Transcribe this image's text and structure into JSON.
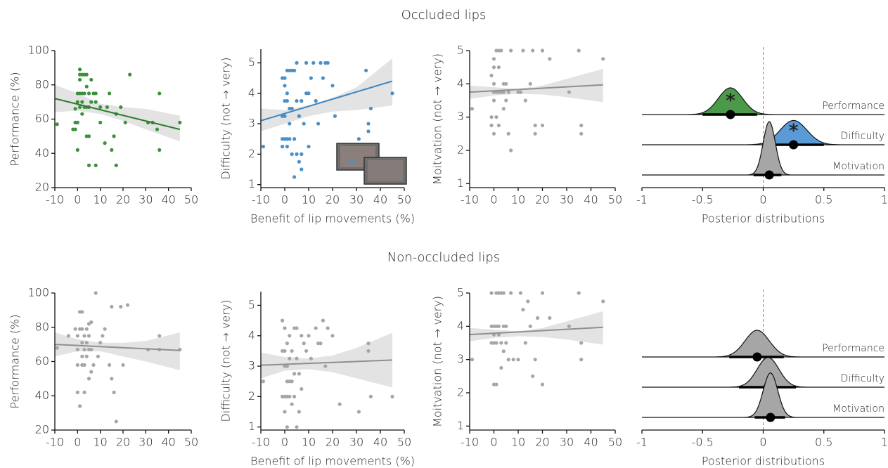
{
  "chart_data": [
    {
      "type": "scatter",
      "title": "Occluded lips",
      "ylabel": "Performance (%)",
      "color": "#3f8f3f",
      "fit_color": "#2e7d2e",
      "x": [
        -9,
        -2,
        -1,
        -1,
        -1,
        0,
        0,
        0,
        0,
        1,
        1,
        1,
        1,
        1,
        2,
        2,
        2,
        2,
        3,
        3,
        3,
        4,
        4,
        4,
        4,
        5,
        5,
        5,
        5,
        6,
        6,
        7,
        8,
        8,
        8,
        10,
        10,
        12,
        13,
        14,
        15,
        16,
        17,
        17,
        19,
        21,
        23,
        31,
        33,
        35,
        36,
        36,
        45
      ],
      "y": [
        57,
        54,
        54,
        58,
        66,
        42,
        58,
        70,
        75,
        67,
        75,
        83,
        86,
        89,
        63,
        70,
        75,
        86,
        67,
        75,
        86,
        50,
        67,
        79,
        86,
        33,
        50,
        67,
        75,
        70,
        83,
        75,
        33,
        70,
        75,
        58,
        67,
        46,
        67,
        75,
        42,
        50,
        33,
        63,
        67,
        58,
        86,
        58,
        58,
        54,
        42,
        75,
        58
      ],
      "fit": {
        "x": [
          -10,
          45
        ],
        "y": [
          72,
          54
        ]
      },
      "band": {
        "x": [
          -10,
          0,
          10,
          20,
          30,
          45
        ],
        "lower": [
          64,
          65,
          63,
          59,
          54,
          47
        ],
        "upper": [
          80,
          75,
          69,
          67,
          66,
          62
        ]
      },
      "xlim": [
        -10,
        50
      ],
      "xticks": [
        -10,
        0,
        10,
        20,
        30,
        40,
        50
      ],
      "ylim": [
        20,
        100
      ],
      "yticks": [
        20,
        40,
        60,
        80,
        100
      ]
    },
    {
      "type": "scatter",
      "ylabel": "Difficulty (not → very)",
      "xlabel": "Benefit of lip movements (%)",
      "color": "#4a90c8",
      "fit_color": "#3a85c4",
      "x": [
        -9,
        -1,
        -1,
        -1,
        -1,
        0,
        0,
        0,
        0,
        0,
        1,
        1,
        1,
        1,
        1,
        2,
        2,
        2,
        2,
        3,
        3,
        3,
        4,
        4,
        4,
        5,
        5,
        5,
        6,
        6,
        7,
        7,
        7,
        8,
        9,
        9,
        10,
        10,
        11,
        12,
        13,
        14,
        15,
        16,
        17,
        18,
        20,
        21,
        28,
        31,
        34,
        35,
        35,
        36,
        45
      ],
      "y": [
        2.25,
        2.25,
        2.5,
        3.25,
        4.5,
        2.5,
        3.25,
        3.75,
        4.25,
        4.5,
        2.25,
        2.5,
        3.75,
        4,
        4.75,
        2.5,
        3,
        3.5,
        4.75,
        2,
        3.5,
        4.75,
        1.25,
        2.5,
        4.75,
        2,
        3.75,
        5,
        1.75,
        3.25,
        1.5,
        2,
        3.75,
        3,
        4,
        5,
        2.25,
        4,
        4.5,
        5,
        3.75,
        3,
        5,
        4.5,
        5,
        5,
        4.25,
        3.25,
        1.75,
        2.5,
        4.75,
        2.75,
        3,
        3.5,
        4
      ],
      "fit": {
        "x": [
          -10,
          45
        ],
        "y": [
          3.1,
          4.4
        ]
      },
      "band": {
        "x": [
          -10,
          0,
          10,
          20,
          30,
          45
        ],
        "lower": [
          2.75,
          3,
          3.25,
          3.4,
          3.45,
          3.6
        ],
        "upper": [
          3.5,
          3.45,
          3.6,
          3.85,
          4.2,
          5.15
        ]
      },
      "xlim": [
        -10,
        50
      ],
      "xticks": [
        -10,
        0,
        10,
        20,
        30,
        40,
        50
      ],
      "ylim": [
        0.9,
        5.45
      ],
      "yticks": [
        1,
        2,
        3,
        4,
        5
      ]
    },
    {
      "type": "scatter",
      "ylabel": "Moitvation (not → very)",
      "color": "#a6a6a6",
      "fit_color": "#8f8f8f",
      "x": [
        -9,
        -1,
        -1,
        -1,
        0,
        0,
        0,
        0,
        0,
        0,
        1,
        1,
        1,
        2,
        2,
        2,
        2,
        3,
        3,
        4,
        4,
        4,
        5,
        5,
        6,
        6,
        7,
        7,
        10,
        11,
        12,
        13,
        15,
        16,
        17,
        17,
        20,
        20,
        23,
        31,
        35,
        36,
        36,
        45
      ],
      "y": [
        3.25,
        2.75,
        3,
        4.25,
        2.5,
        3.5,
        3.75,
        4,
        4.5,
        4.75,
        3,
        3.75,
        5,
        2.75,
        3.75,
        4.5,
        5,
        3.75,
        5,
        3.25,
        3.75,
        4,
        3.5,
        4,
        2.5,
        3.75,
        2,
        5,
        3.75,
        3.75,
        5,
        3.5,
        4,
        5,
        2.5,
        2.75,
        2.75,
        5,
        4.75,
        3.75,
        5,
        2.5,
        2.75,
        4.75
      ],
      "fit": {
        "x": [
          -10,
          45
        ],
        "y": [
          3.75,
          3.97
        ]
      },
      "band": {
        "x": [
          -10,
          0,
          10,
          20,
          30,
          45
        ],
        "lower": [
          3.55,
          3.65,
          3.7,
          3.68,
          3.6,
          3.45
        ],
        "upper": [
          3.95,
          3.9,
          3.85,
          3.95,
          4.15,
          4.45
        ]
      },
      "xlim": [
        -10,
        50
      ],
      "xticks": [
        -10,
        0,
        10,
        20,
        30,
        40,
        50
      ],
      "ylim": [
        0.88,
        5
      ],
      "yticks": [
        1,
        2,
        3,
        4,
        5
      ]
    },
    {
      "type": "ridge",
      "xlabel": "Posterior distributions",
      "xlim": [
        -1,
        1
      ],
      "xticks": [
        -1,
        -0.5,
        0,
        0.5,
        1
      ],
      "refline": 0,
      "series": [
        {
          "name": "Performance",
          "color": "#4a9a4a",
          "mean": -0.27,
          "sd": 0.1,
          "ci": [
            -0.5,
            -0.05
          ],
          "annotation": "*"
        },
        {
          "name": "Difficulty",
          "color": "#5b9bd5",
          "mean": 0.25,
          "sd": 0.11,
          "ci": [
            0,
            0.5
          ],
          "annotation": "*"
        },
        {
          "name": "Motivation",
          "color": "#a6a6a6",
          "mean": 0.05,
          "sd": 0.05,
          "ci": [
            -0.08,
            0.15
          ]
        }
      ]
    },
    {
      "type": "scatter",
      "title": "Non-occluded lips",
      "ylabel": "Performance (%)",
      "color": "#a6a6a6",
      "fit_color": "#8f8f8f",
      "x": [
        -9,
        -4,
        -1,
        0,
        0,
        0,
        0,
        1,
        1,
        1,
        2,
        2,
        2,
        2,
        2,
        3,
        3,
        3,
        3,
        4,
        4,
        4,
        5,
        5,
        5,
        5,
        6,
        6,
        6,
        7,
        8,
        9,
        10,
        11,
        12,
        14,
        15,
        15,
        16,
        17,
        19,
        20,
        22,
        31,
        36,
        36,
        45
      ],
      "y": [
        68,
        75,
        79,
        42,
        58,
        67,
        75,
        34,
        79,
        89,
        58,
        63,
        71,
        79,
        89,
        42,
        58,
        67,
        75,
        63,
        71,
        79,
        50,
        67,
        75,
        82,
        54,
        67,
        83,
        58,
        100,
        63,
        71,
        75,
        79,
        58,
        50,
        92,
        42,
        25,
        92,
        58,
        93,
        67,
        67,
        75,
        67
      ],
      "fit": {
        "x": [
          -10,
          45
        ],
        "y": [
          70,
          66.5
        ]
      },
      "band": {
        "x": [
          -10,
          0,
          10,
          20,
          30,
          45
        ],
        "lower": [
          63,
          66,
          66,
          63,
          60,
          55
        ],
        "upper": [
          77,
          73,
          71,
          71,
          72,
          77
        ]
      },
      "xlim": [
        -10,
        50
      ],
      "xticks": [
        -10,
        0,
        10,
        20,
        30,
        40,
        50
      ],
      "ylim": [
        20,
        100
      ],
      "yticks": [
        20,
        40,
        60,
        80,
        100
      ]
    },
    {
      "type": "scatter",
      "ylabel": "Difficulty (not → very)",
      "xlabel": "Benefit of lip movements (%)",
      "color": "#a6a6a6",
      "fit_color": "#8f8f8f",
      "x": [
        -9,
        -1,
        -1,
        -1,
        0,
        0,
        0,
        0,
        0,
        1,
        1,
        1,
        1,
        1,
        2,
        2,
        2,
        2,
        3,
        3,
        3,
        4,
        4,
        4,
        5,
        5,
        5,
        6,
        6,
        7,
        7,
        8,
        9,
        10,
        11,
        13,
        14,
        15,
        16,
        17,
        18,
        20,
        23,
        31,
        35,
        35,
        36,
        45
      ],
      "y": [
        2.5,
        2,
        3.5,
        4.5,
        1.5,
        2,
        3,
        3.5,
        4.25,
        1,
        2,
        2.5,
        3,
        3.75,
        2,
        2.5,
        3.25,
        4,
        1.75,
        2.5,
        3.5,
        2,
        2.75,
        4.25,
        1,
        3.25,
        4.25,
        1.5,
        2.75,
        2.25,
        4,
        3.75,
        3.5,
        4,
        3.25,
        4.25,
        3.75,
        3.75,
        4.5,
        3,
        4.25,
        4,
        1.75,
        1.5,
        3.75,
        3.5,
        2,
        2
      ],
      "fit": {
        "x": [
          -10,
          45
        ],
        "y": [
          3.03,
          3.2
        ]
      },
      "band": {
        "x": [
          -10,
          0,
          10,
          20,
          30,
          45
        ],
        "lower": [
          2.6,
          2.85,
          2.9,
          2.8,
          2.6,
          2.3
        ],
        "upper": [
          3.45,
          3.3,
          3.25,
          3.35,
          3.6,
          4.1
        ]
      },
      "xlim": [
        -10,
        50
      ],
      "xticks": [
        -10,
        0,
        10,
        20,
        30,
        40,
        50
      ],
      "ylim": [
        0.9,
        5.45
      ],
      "yticks": [
        1,
        2,
        3,
        4,
        5
      ]
    },
    {
      "type": "scatter",
      "ylabel": "Moitvation (not → very)",
      "color": "#a6a6a6",
      "fit_color": "#8f8f8f",
      "x": [
        -9,
        -1,
        -1,
        -1,
        0,
        0,
        0,
        0,
        1,
        1,
        1,
        1,
        2,
        2,
        2,
        3,
        3,
        3,
        4,
        4,
        4,
        5,
        5,
        6,
        7,
        8,
        10,
        11,
        12,
        13,
        14,
        15,
        16,
        17,
        18,
        20,
        20,
        23,
        31,
        35,
        36,
        36,
        45
      ],
      "y": [
        3,
        3.5,
        4,
        5,
        2.25,
        3.5,
        3.75,
        4,
        2.25,
        3.5,
        4,
        5,
        3.75,
        4,
        5,
        2.75,
        3.5,
        5,
        3.25,
        4,
        5,
        3.5,
        4,
        3,
        5,
        3,
        3,
        5,
        4.5,
        3.5,
        4.75,
        4,
        2.5,
        3,
        4.25,
        2.25,
        5,
        4.25,
        4,
        5,
        3,
        3.5,
        4.75
      ],
      "fit": {
        "x": [
          -10,
          45
        ],
        "y": [
          3.75,
          3.97
        ]
      },
      "band": {
        "x": [
          -10,
          0,
          10,
          20,
          30,
          45
        ],
        "lower": [
          3.55,
          3.65,
          3.7,
          3.68,
          3.6,
          3.45
        ],
        "upper": [
          3.95,
          3.9,
          3.85,
          3.95,
          4.15,
          4.45
        ]
      },
      "xlim": [
        -10,
        50
      ],
      "xticks": [
        -10,
        0,
        10,
        20,
        30,
        40,
        50
      ],
      "ylim": [
        0.88,
        5
      ],
      "yticks": [
        1,
        2,
        3,
        4,
        5
      ]
    },
    {
      "type": "ridge",
      "xlabel": "Posterior distributions",
      "xlim": [
        -1,
        1
      ],
      "xticks": [
        -1,
        -0.5,
        0,
        0.5,
        1
      ],
      "refline": 0,
      "series": [
        {
          "name": "Performance",
          "color": "#a6a6a6",
          "mean": -0.05,
          "sd": 0.1,
          "ci": [
            -0.28,
            0.17
          ]
        },
        {
          "name": "Difficulty",
          "color": "#a6a6a6",
          "mean": 0.04,
          "sd": 0.09,
          "ci": [
            -0.2,
            0.27
          ]
        },
        {
          "name": "Motivation",
          "color": "#a6a6a6",
          "mean": 0.06,
          "sd": 0.06,
          "ci": [
            -0.07,
            0.18
          ]
        }
      ]
    }
  ]
}
